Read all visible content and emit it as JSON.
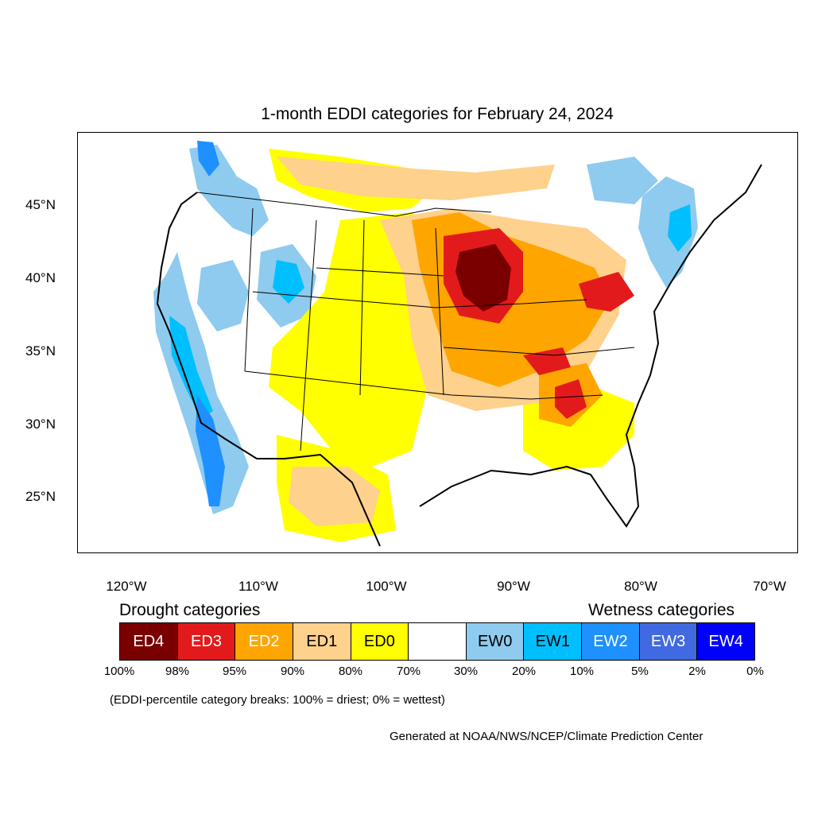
{
  "title": "1-month EDDI categories for February 24, 2024",
  "lat_labels": [
    "45°N",
    "40°N",
    "35°N",
    "30°N",
    "25°N"
  ],
  "lon_labels": [
    "120°W",
    "110°W",
    "100°W",
    "90°W",
    "80°W",
    "70°W"
  ],
  "legend": {
    "drought_heading": "Drought categories",
    "wetness_heading": "Wetness categories",
    "categories": [
      {
        "label": "ED4",
        "color": "#7a0000",
        "text_color": "#ffffff"
      },
      {
        "label": "ED3",
        "color": "#e31a1c",
        "text_color": "#ffffff"
      },
      {
        "label": "ED2",
        "color": "#ffa500",
        "text_color": "#ffffff"
      },
      {
        "label": "ED1",
        "color": "#fed18c",
        "text_color": "#000000"
      },
      {
        "label": "ED0",
        "color": "#ffff00",
        "text_color": "#000000"
      },
      {
        "label": "",
        "color": "#ffffff",
        "text_color": "#000000"
      },
      {
        "label": "EW0",
        "color": "#8ecbef",
        "text_color": "#000000"
      },
      {
        "label": "EW1",
        "color": "#00bfff",
        "text_color": "#000000"
      },
      {
        "label": "EW2",
        "color": "#1e90ff",
        "text_color": "#ffffff"
      },
      {
        "label": "EW3",
        "color": "#4169e1",
        "text_color": "#ffffff"
      },
      {
        "label": "EW4",
        "color": "#0000ff",
        "text_color": "#ffffff"
      }
    ],
    "breaks": [
      "100%",
      "98%",
      "95%",
      "90%",
      "80%",
      "70%",
      "30%",
      "20%",
      "10%",
      "5%",
      "2%",
      "0%"
    ]
  },
  "note": "(EDDI-percentile category breaks: 100% = driest; 0% = wettest)",
  "credit": "Generated at NOAA/NWS/NCEP/Climate Prediction Center"
}
